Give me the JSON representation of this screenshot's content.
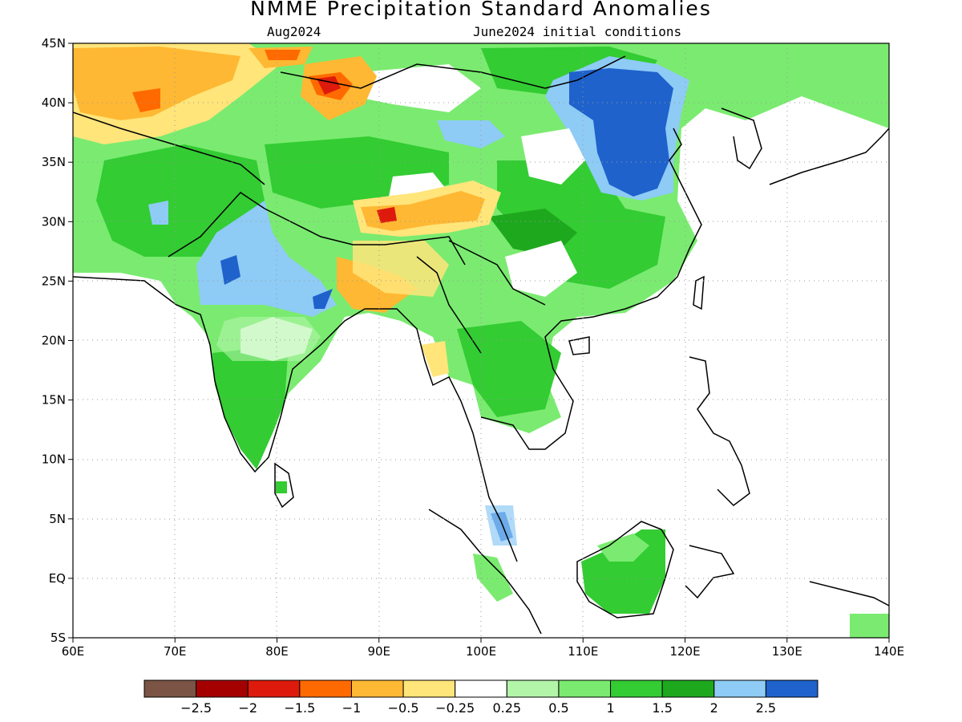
{
  "title": "NMME Precipitation Standard Anomalies",
  "subtitle_left": "Aug2024",
  "subtitle_right": "June2024 initial conditions",
  "map": {
    "lon_range": [
      60,
      140
    ],
    "lat_range": [
      -5,
      45
    ],
    "lon_ticks": [
      "60E",
      "70E",
      "80E",
      "90E",
      "100E",
      "110E",
      "120E",
      "130E",
      "140E"
    ],
    "lat_ticks": [
      "45N",
      "40N",
      "35N",
      "30N",
      "25N",
      "20N",
      "15N",
      "10N",
      "5N",
      "EQ",
      "5S"
    ],
    "grid": "dotted"
  },
  "colorbar": {
    "colors": [
      "#7b5445",
      "#a50000",
      "#dd1a0c",
      "#ff6a00",
      "#ffb833",
      "#ffe57a",
      "#ffffff",
      "#b3f5a8",
      "#7aeb70",
      "#33cc33",
      "#1ea81e",
      "#8ecbf5",
      "#1f62cc"
    ],
    "labels": [
      "−2.5",
      "−2",
      "−1.5",
      "−1",
      "−0.5",
      "−0.25",
      "0.25",
      "0.5",
      "1",
      "1.5",
      "2",
      "2.5"
    ]
  },
  "chart_data": {
    "type": "heatmap",
    "title": "NMME Precipitation Standard Anomalies",
    "period": "Aug2024",
    "initial_conditions": "June2024 initial conditions",
    "region": {
      "lon": [
        60,
        140
      ],
      "lat": [
        -5,
        45
      ]
    },
    "scale_thresholds": [
      -2.5,
      -2,
      -1.5,
      -1,
      -0.5,
      -0.25,
      0.25,
      0.5,
      1,
      1.5,
      2,
      2.5
    ],
    "features": [
      {
        "lon": [
          105,
          120
        ],
        "lat": [
          31,
          41
        ],
        "level": 2.5
      },
      {
        "lon": [
          72,
          79
        ],
        "lat": [
          22,
          30
        ],
        "level": 2
      },
      {
        "lon": [
          88,
          94
        ],
        "lat": [
          29,
          32
        ],
        "level": -1.5
      },
      {
        "lon": [
          84,
          88
        ],
        "lat": [
          40,
          42
        ],
        "level": -1.5
      },
      {
        "lon": [
          64,
          70
        ],
        "lat": [
          38,
          42
        ],
        "level": -1
      },
      {
        "lon": [
          110,
          118
        ],
        "lat": [
          -3,
          4
        ],
        "level": 1.5
      },
      {
        "lon": [
          100,
          104
        ],
        "lat": [
          3,
          6
        ],
        "level": 2.5
      }
    ]
  }
}
